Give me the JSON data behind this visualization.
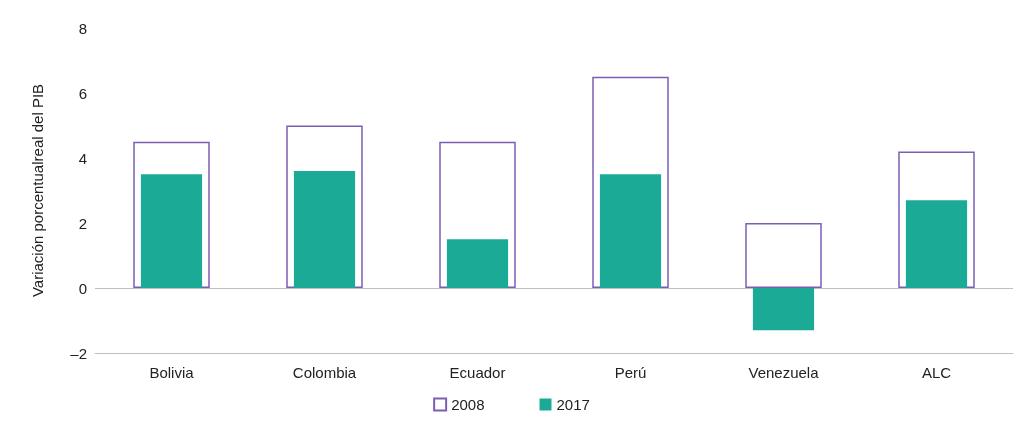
{
  "chart_data": {
    "type": "bar",
    "ylabel": "Variación porcentualreal del PIB",
    "categories": [
      "Bolivia",
      "Colombia",
      "Ecuador",
      "Perú",
      "Venezuela",
      "ALC"
    ],
    "series": [
      {
        "name": "2008",
        "color": "#7b5fb5",
        "values": [
          4.5,
          5.0,
          4.5,
          6.5,
          2.0,
          4.2
        ]
      },
      {
        "name": "2017",
        "color": "#1aaa96",
        "values": [
          3.5,
          3.6,
          1.5,
          3.5,
          -1.3,
          2.7
        ]
      }
    ],
    "ylim": [
      -2,
      8
    ],
    "yticks": [
      {
        "value": -2,
        "label": "–2"
      },
      0,
      2,
      4,
      6,
      8
    ],
    "ref_lines": [
      {
        "axis": "y",
        "value": 0,
        "color": "#bfbfbf"
      }
    ],
    "grid": false,
    "legend": "bottom"
  }
}
